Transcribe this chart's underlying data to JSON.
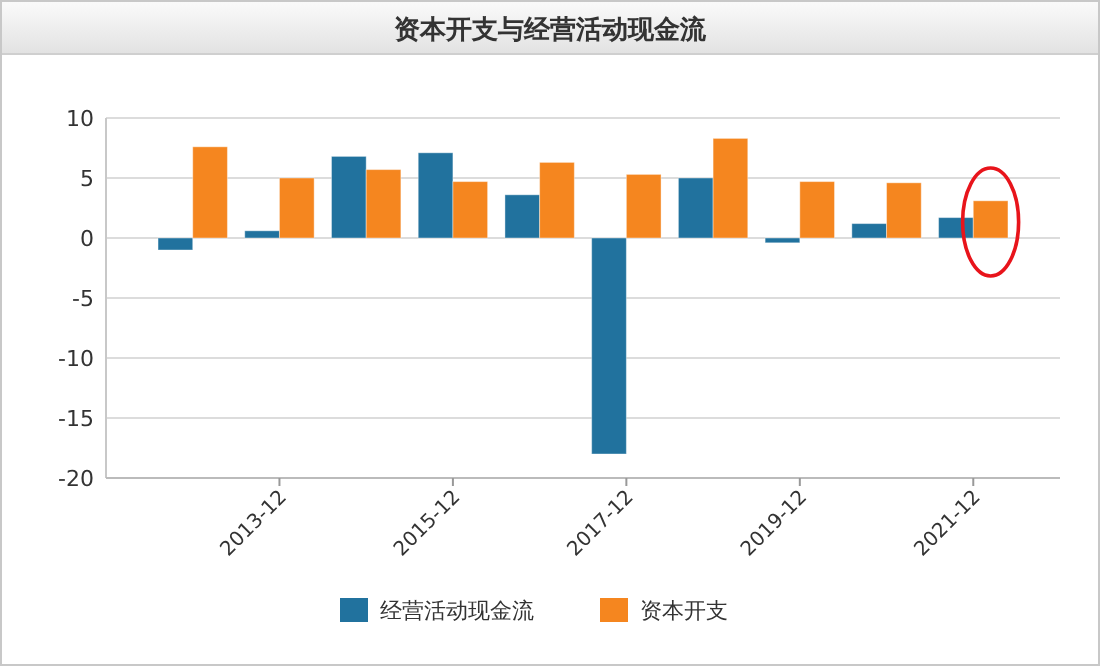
{
  "chart_data": {
    "type": "bar",
    "title": "资本开支与经营活动现金流",
    "categories": [
      null,
      "2013-12",
      null,
      "2015-12",
      null,
      "2017-12",
      null,
      "2019-12",
      null,
      "2021-12"
    ],
    "series": [
      {
        "name": "经营活动现金流",
        "color": "#21729e",
        "values": [
          -1.0,
          0.6,
          6.8,
          7.1,
          3.6,
          -18.0,
          5.0,
          -0.4,
          1.2,
          1.7
        ]
      },
      {
        "name": "资本开支",
        "color": "#f5861f",
        "values": [
          7.6,
          5.0,
          5.7,
          4.7,
          6.3,
          5.3,
          8.3,
          4.7,
          4.6,
          3.1
        ]
      }
    ],
    "ylim": [
      -20,
      10
    ],
    "yticks": [
      -20,
      -15,
      -10,
      -5,
      0,
      5,
      10
    ],
    "grid": "y",
    "legend": "bottom"
  }
}
